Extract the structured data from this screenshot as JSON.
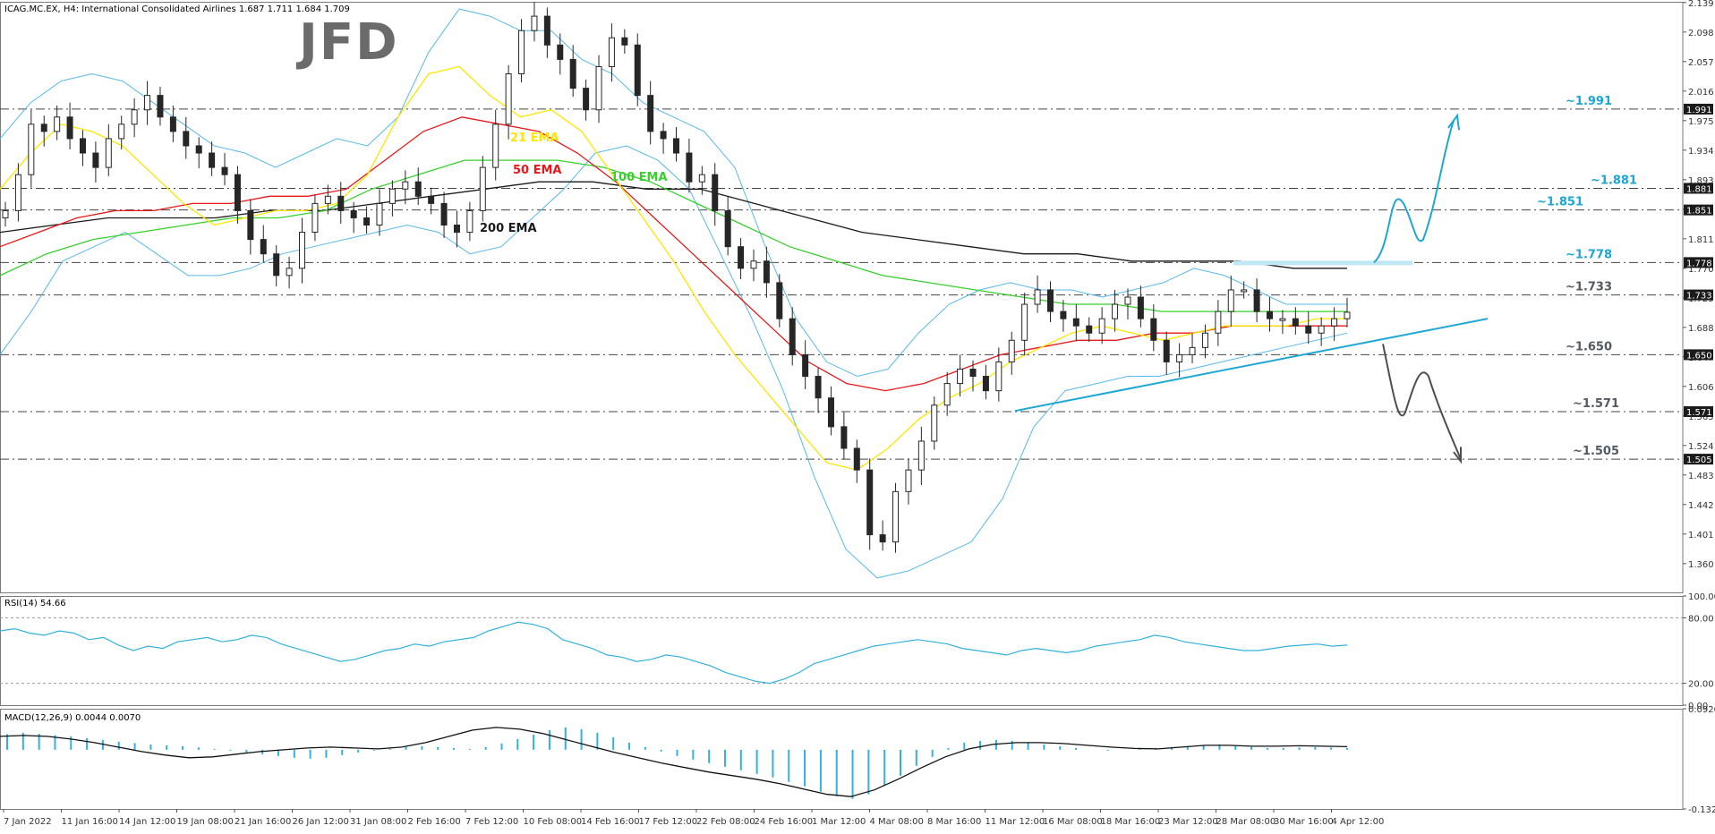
{
  "brand": {
    "logo_text": "JFD"
  },
  "header": {
    "symbol_info": "ICAG.MC.EX, H4:  International Consolidated Airlines  1.687 1.711 1.684 1.709"
  },
  "colors": {
    "bull_candle": "#ffffff",
    "bear_candle": "#262626",
    "candle_outline": "#262626",
    "ema21": "#ffe600",
    "ema50": "#e8191a",
    "ema100": "#36d12c",
    "ema200": "#1a1a1a",
    "bollinger": "#58b9ea",
    "trendline": "#1ea7d4",
    "scenario_up": "#1ea7d4",
    "scenario_down": "#4a4f54",
    "level_up_label": "#1aa6d6",
    "level_down_label": "#525a62",
    "rsi_line": "#33b1dd",
    "macd_hist": "#33b1dd",
    "macd_signal": "#111111"
  },
  "chart_data": [
    {
      "type": "line",
      "title": "ICAG.MC.EX, H4",
      "candles_approx": [
        1.85,
        1.9,
        1.97,
        1.96,
        1.98,
        1.95,
        1.93,
        1.91,
        1.95,
        1.97,
        1.99,
        2.01,
        1.98,
        1.96,
        1.94,
        1.93,
        1.91,
        1.9,
        1.85,
        1.81,
        1.79,
        1.76,
        1.77,
        1.82,
        1.86,
        1.87,
        1.85,
        1.84,
        1.83,
        1.86,
        1.88,
        1.89,
        1.87,
        1.86,
        1.83,
        1.82,
        1.85,
        1.91,
        1.97,
        2.04,
        2.1,
        2.12,
        2.08,
        2.06,
        2.02,
        1.99,
        2.05,
        2.09,
        2.08,
        2.01,
        1.96,
        1.95,
        1.93,
        1.89,
        1.9,
        1.85,
        1.8,
        1.77,
        1.78,
        1.75,
        1.7,
        1.65,
        1.62,
        1.59,
        1.55,
        1.52,
        1.49,
        1.4,
        1.39,
        1.46,
        1.49,
        1.53,
        1.58,
        1.61,
        1.63,
        1.62,
        1.6,
        1.64,
        1.67,
        1.72,
        1.74,
        1.71,
        1.7,
        1.69,
        1.68,
        1.7,
        1.72,
        1.73,
        1.7,
        1.67,
        1.64,
        1.65,
        1.66,
        1.68,
        1.71,
        1.74,
        1.74,
        1.71,
        1.7,
        1.7,
        1.69,
        1.68,
        1.69,
        1.7,
        1.709
      ],
      "ema21_approx": [
        1.88,
        1.93,
        1.97,
        1.96,
        1.94,
        1.9,
        1.86,
        1.83,
        1.84,
        1.85,
        1.85,
        1.86,
        1.9,
        1.98,
        2.04,
        2.05,
        2.01,
        1.98,
        1.99,
        1.96,
        1.9,
        1.84,
        1.78,
        1.71,
        1.65,
        1.6,
        1.55,
        1.5,
        1.49,
        1.52,
        1.56,
        1.59,
        1.61,
        1.64,
        1.66,
        1.68,
        1.69,
        1.68,
        1.67,
        1.68,
        1.69,
        1.69,
        1.69,
        1.7,
        1.7
      ],
      "ema50_approx": [
        1.8,
        1.82,
        1.84,
        1.85,
        1.85,
        1.86,
        1.86,
        1.87,
        1.87,
        1.88,
        1.92,
        1.96,
        1.98,
        1.97,
        1.96,
        1.93,
        1.89,
        1.84,
        1.79,
        1.74,
        1.69,
        1.64,
        1.61,
        1.6,
        1.61,
        1.63,
        1.65,
        1.66,
        1.67,
        1.67,
        1.68,
        1.68,
        1.69,
        1.69,
        1.69,
        1.69
      ],
      "ema100_approx": [
        1.76,
        1.79,
        1.81,
        1.82,
        1.83,
        1.84,
        1.84,
        1.85,
        1.88,
        1.9,
        1.92,
        1.92,
        1.92,
        1.91,
        1.89,
        1.86,
        1.83,
        1.8,
        1.78,
        1.76,
        1.75,
        1.74,
        1.73,
        1.72,
        1.72,
        1.71,
        1.71,
        1.71,
        1.71,
        1.71
      ],
      "ema200_approx": [
        1.82,
        1.83,
        1.84,
        1.84,
        1.84,
        1.85,
        1.85,
        1.86,
        1.87,
        1.88,
        1.89,
        1.89,
        1.88,
        1.88,
        1.86,
        1.84,
        1.82,
        1.81,
        1.8,
        1.79,
        1.79,
        1.78,
        1.78,
        1.78,
        1.77,
        1.77
      ],
      "bb_upper_approx": [
        1.95,
        2.0,
        2.03,
        2.04,
        2.03,
        2.0,
        1.97,
        1.94,
        1.93,
        1.91,
        1.93,
        1.95,
        1.94,
        1.98,
        2.07,
        2.13,
        2.12,
        2.1,
        2.1,
        2.06,
        2.04,
        2.0,
        1.98,
        1.96,
        1.91,
        1.8,
        1.7,
        1.64,
        1.62,
        1.63,
        1.68,
        1.72,
        1.74,
        1.75,
        1.74,
        1.74,
        1.73,
        1.74,
        1.75,
        1.77,
        1.76,
        1.74,
        1.72,
        1.72,
        1.72
      ],
      "bb_lower_approx": [
        1.65,
        1.71,
        1.78,
        1.8,
        1.82,
        1.79,
        1.76,
        1.76,
        1.77,
        1.79,
        1.8,
        1.81,
        1.82,
        1.83,
        1.82,
        1.79,
        1.8,
        1.84,
        1.88,
        1.93,
        1.94,
        1.92,
        1.88,
        1.79,
        1.7,
        1.6,
        1.48,
        1.38,
        1.34,
        1.35,
        1.37,
        1.39,
        1.45,
        1.55,
        1.6,
        1.61,
        1.62,
        1.62,
        1.63,
        1.64,
        1.65,
        1.66,
        1.67,
        1.68
      ],
      "ylim": [
        1.32,
        2.14
      ],
      "price_ticks": [
        "2.139",
        "2.098",
        "2.057",
        "2.016",
        "1.975",
        "1.934",
        "1.893",
        "1.852",
        "1.811",
        "1.770",
        "1.729",
        "1.688",
        "1.647",
        "1.606",
        "1.565",
        "1.524",
        "1.483",
        "1.442",
        "1.401",
        "1.360"
      ],
      "price_tick_values": [
        2.139,
        2.098,
        2.057,
        2.016,
        1.975,
        1.934,
        1.893,
        1.852,
        1.811,
        1.77,
        1.729,
        1.688,
        1.647,
        1.606,
        1.565,
        1.524,
        1.483,
        1.442,
        1.401,
        1.36
      ],
      "time_labels": [
        "7 Jan 2022",
        "11 Jan 16:00",
        "14 Jan 12:00",
        "19 Jan 08:00",
        "21 Jan 16:00",
        "26 Jan 12:00",
        "31 Jan 08:00",
        "2 Feb 16:00",
        "7 Feb 12:00",
        "10 Feb 08:00",
        "14 Feb 16:00",
        "17 Feb 12:00",
        "22 Feb 08:00",
        "24 Feb 16:00",
        "1 Mar 12:00",
        "4 Mar 08:00",
        "8 Mar 16:00",
        "11 Mar 12:00",
        "16 Mar 08:00",
        "18 Mar 16:00",
        "23 Mar 12:00",
        "28 Mar 08:00",
        "30 Mar 16:00",
        "4 Apr 12:00"
      ],
      "levels": [
        {
          "value": 1.991,
          "label": "~1.991",
          "axis_tag": "1.991",
          "side": "up"
        },
        {
          "value": 1.881,
          "label": "~1.881",
          "axis_tag": "1.881",
          "side": "up"
        },
        {
          "value": 1.851,
          "label": "~1.851",
          "axis_tag": "1.851",
          "side": "up"
        },
        {
          "value": 1.778,
          "label": "~1.778",
          "axis_tag": "1.778",
          "side": "up"
        },
        {
          "value": 1.733,
          "label": "~1.733",
          "axis_tag": "1.733",
          "side": "down"
        },
        {
          "value": 1.65,
          "label": "~1.650",
          "axis_tag": "1.650",
          "side": "down"
        },
        {
          "value": 1.571,
          "label": "~1.571",
          "axis_tag": "1.571",
          "side": "down"
        },
        {
          "value": 1.505,
          "label": "~1.505",
          "axis_tag": "1.505",
          "side": "down"
        }
      ],
      "series_labels": [
        {
          "name": "21 EMA",
          "color_key": "ema21"
        },
        {
          "name": "50 EMA",
          "color_key": "ema50"
        },
        {
          "name": "100 EMA",
          "color_key": "ema100"
        },
        {
          "name": "200 EMA",
          "color_key": "ema200"
        }
      ],
      "trendline": {
        "from": [
          "11 Mar 12:00",
          1.572
        ],
        "to": [
          "4 Apr 12:00+",
          1.687
        ]
      },
      "grid": false
    },
    {
      "type": "line",
      "title": "RSI(14) 54.66",
      "name": "RSI(14)",
      "last": 54.66,
      "ylim": [
        0,
        100
      ],
      "ticks": [
        "100.00",
        "80.00",
        "20.00",
        "0.00"
      ],
      "tick_values": [
        100,
        80,
        20,
        0
      ],
      "values_approx": [
        68,
        70,
        66,
        64,
        68,
        66,
        60,
        62,
        55,
        50,
        54,
        52,
        58,
        60,
        62,
        58,
        60,
        64,
        62,
        56,
        52,
        48,
        44,
        40,
        42,
        46,
        50,
        52,
        56,
        54,
        58,
        60,
        62,
        68,
        72,
        76,
        74,
        70,
        60,
        56,
        52,
        46,
        44,
        40,
        42,
        46,
        44,
        40,
        36,
        30,
        26,
        22,
        20,
        24,
        30,
        38,
        42,
        46,
        50,
        54,
        56,
        58,
        60,
        58,
        56,
        52,
        50,
        48,
        46,
        50,
        52,
        50,
        48,
        50,
        54,
        56,
        58,
        60,
        64,
        62,
        58,
        56,
        54,
        52,
        50,
        50,
        52,
        54,
        55,
        56,
        54,
        55
      ]
    },
    {
      "type": "bar",
      "title": "MACD(12,26,9) 0.0044 0.0070",
      "name": "MACD(12,26,9)",
      "macd": 0.0044,
      "signal": 0.007,
      "ylim": [
        -0.1327,
        0.092
      ],
      "ticks": [
        "0.0920",
        "-0.1327"
      ],
      "tick_values": [
        0.092,
        -0.1327
      ],
      "hist_approx": [
        0.035,
        0.038,
        0.036,
        0.033,
        0.03,
        0.026,
        0.022,
        0.018,
        0.015,
        0.012,
        0.01,
        0.008,
        0.005,
        0.002,
        -0.002,
        -0.006,
        -0.01,
        -0.014,
        -0.018,
        -0.02,
        -0.018,
        -0.012,
        -0.006,
        -0.002,
        0.002,
        0.006,
        0.008,
        0.006,
        0.004,
        0.002,
        0.006,
        0.014,
        0.024,
        0.034,
        0.044,
        0.05,
        0.046,
        0.038,
        0.028,
        0.016,
        0.006,
        -0.004,
        -0.014,
        -0.022,
        -0.03,
        -0.038,
        -0.046,
        -0.054,
        -0.062,
        -0.072,
        -0.082,
        -0.094,
        -0.104,
        -0.11,
        -0.1,
        -0.08,
        -0.058,
        -0.036,
        -0.016,
        0.004,
        0.016,
        0.02,
        0.022,
        0.02,
        0.016,
        0.012,
        0.008,
        0.004,
        0.0,
        -0.002,
        0.0,
        0.002,
        0.004,
        0.006,
        0.008,
        0.01,
        0.012,
        0.008,
        0.006,
        0.004,
        0.004,
        0.005,
        0.006,
        0.005,
        0.004
      ],
      "signal_approx": [
        0.03,
        0.032,
        0.03,
        0.024,
        0.016,
        0.006,
        -0.004,
        -0.012,
        -0.018,
        -0.016,
        -0.01,
        -0.004,
        0.0,
        0.004,
        0.006,
        0.004,
        0.002,
        0.006,
        0.016,
        0.03,
        0.044,
        0.05,
        0.046,
        0.036,
        0.022,
        0.008,
        -0.006,
        -0.018,
        -0.03,
        -0.04,
        -0.05,
        -0.058,
        -0.066,
        -0.076,
        -0.088,
        -0.1,
        -0.105,
        -0.09,
        -0.066,
        -0.04,
        -0.016,
        0.002,
        0.012,
        0.016,
        0.016,
        0.014,
        0.01,
        0.006,
        0.003,
        0.002,
        0.006,
        0.01,
        0.01,
        0.008,
        0.008,
        0.009,
        0.008,
        0.007
      ]
    }
  ]
}
